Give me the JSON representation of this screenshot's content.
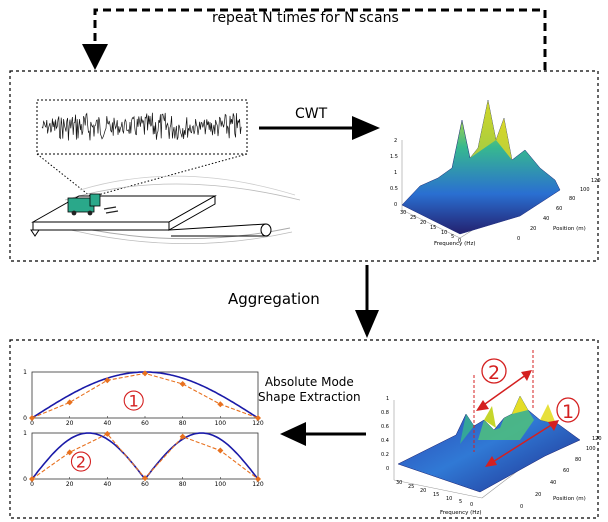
{
  "loop": {
    "label": "repeat N times for N scans"
  },
  "cwt": {
    "label": "CWT"
  },
  "aggregation": {
    "label": "Aggregation"
  },
  "mode_extraction": {
    "line1": "Absolute Mode",
    "line2": "Shape Extraction"
  },
  "colors": {
    "true_mode": "#1a1aa8",
    "estimated_mode": "#e8711f",
    "marker_red": "#d42020",
    "vehicle": "#2aa88a"
  },
  "surface_top": {
    "z_ticks": [
      "2",
      "1.5",
      "1",
      "0.5",
      "0"
    ],
    "freq_ticks": [
      "30",
      "25",
      "20",
      "15",
      "10",
      "5",
      "0"
    ],
    "pos_ticks": [
      "0",
      "20",
      "40",
      "60",
      "80",
      "100",
      "120"
    ],
    "x_label": "Frequency (Hz)",
    "y_label": "Position (m)"
  },
  "surface_bottom": {
    "z_ticks": [
      "1",
      "0.8",
      "0.6",
      "0.4",
      "0.2",
      "0"
    ],
    "freq_ticks": [
      "30",
      "25",
      "20",
      "15",
      "10",
      "5",
      "0"
    ],
    "pos_ticks": [
      "0",
      "20",
      "40",
      "60",
      "80",
      "100",
      "120"
    ],
    "x_label": "Frequency (Hz)",
    "y_label": "Position (m)",
    "mode_markers": [
      "1",
      "2"
    ]
  },
  "chart_data": [
    {
      "type": "line",
      "panel": "mode-1",
      "marker": "1",
      "xlim": [
        0,
        120
      ],
      "ylim": [
        0,
        1
      ],
      "x_ticks": [
        0,
        20,
        40,
        60,
        80,
        100,
        120
      ],
      "y_ticks": [
        0,
        1
      ],
      "estimated_points": {
        "x": [
          0,
          20,
          40,
          60,
          80,
          100,
          120
        ],
        "y": [
          0,
          0.34,
          0.82,
          0.97,
          0.74,
          0.3,
          0
        ]
      }
    },
    {
      "type": "line",
      "panel": "mode-2",
      "marker": "2",
      "xlim": [
        0,
        120
      ],
      "ylim": [
        0,
        1
      ],
      "x_ticks": [
        0,
        20,
        40,
        60,
        80,
        100,
        120
      ],
      "y_ticks": [
        0,
        1
      ],
      "estimated_points": {
        "x": [
          0,
          20,
          40,
          60,
          80,
          100,
          120
        ],
        "y": [
          0,
          0.58,
          0.98,
          0.02,
          0.92,
          0.62,
          0
        ]
      }
    }
  ]
}
